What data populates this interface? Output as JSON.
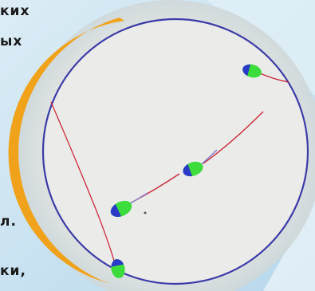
{
  "text_fragments": [
    "ких",
    "ых",
    "л.",
    "ки,"
  ],
  "colors": {
    "background": "#cfe6f3",
    "dish_fill": "#ebebea",
    "dish_rim": "#3b3ba8",
    "orange_edge": "#f0a21a",
    "sperm_head_green": "#3ddc3d",
    "sperm_head_blue": "#2a39c8",
    "tail_red": "#cc2a3a"
  }
}
